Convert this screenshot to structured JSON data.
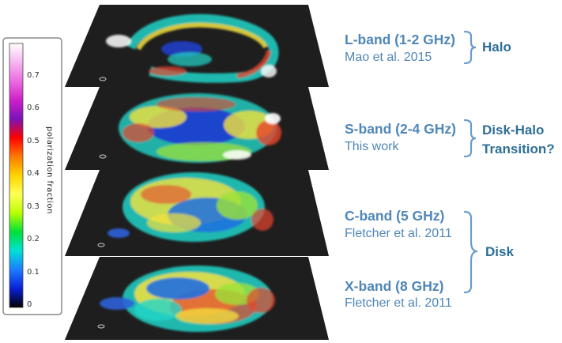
{
  "colorbar": {
    "title": "polarization fraction",
    "ticks": [
      "0.7",
      "0.6",
      "0.5",
      "0.4",
      "0.3",
      "0.2",
      "0.1",
      "0"
    ],
    "colors": [
      "#ffffff",
      "#f7b6f0",
      "#ec6ce0",
      "#d01fc8",
      "#7a13b8",
      "#ff0000",
      "#ff7a00",
      "#ffd400",
      "#ffff55",
      "#b8ff00",
      "#00e03a",
      "#00e0d6",
      "#1c7cff",
      "#0a1fd6",
      "#000000"
    ]
  },
  "bands": [
    {
      "title": "L-band (1-2 GHz)",
      "ref": "Mao et al. 2015"
    },
    {
      "title": "S-band (2-4 GHz)",
      "ref": "This work"
    },
    {
      "title": "C-band (5 GHz)",
      "ref": "Fletcher et al. 2011"
    },
    {
      "title": "X-band (8 GHz)",
      "ref": "Fletcher et al. 2011"
    }
  ],
  "groups": {
    "halo": "Halo",
    "transition_line1": "Disk-Halo",
    "transition_line2": "Transition?",
    "disk": "Disk"
  },
  "colors": {
    "text_blue": "#4f86b8",
    "group_blue": "#2d6f98",
    "bracket": "#6b9ccc",
    "plane": "#1e1e1e"
  }
}
